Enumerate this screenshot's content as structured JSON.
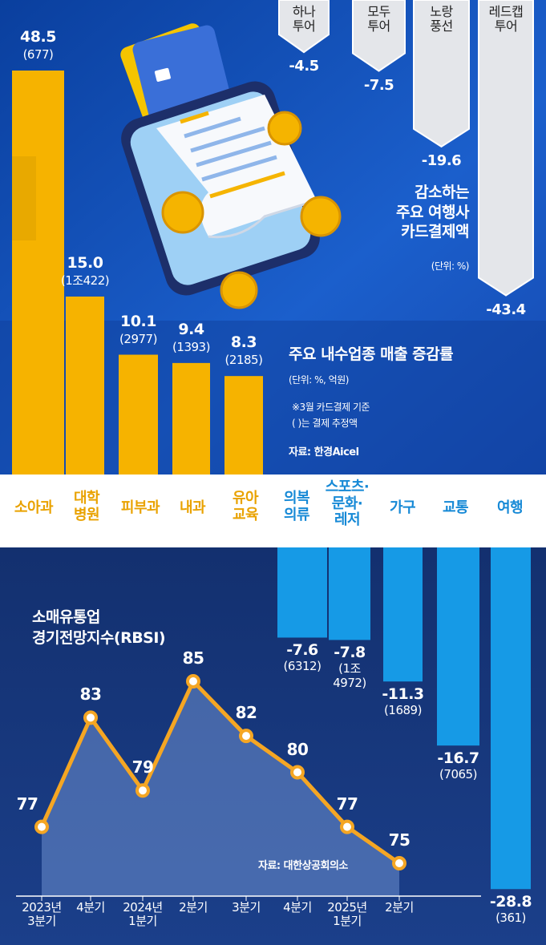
{
  "chart_data": [
    {
      "type": "arrow-bar",
      "title": "감소하는\n주요 여행사\n카드결제액",
      "unit": "(단위: %)",
      "categories": [
        "하나\n투어",
        "모두\n투어",
        "노랑\n풍선",
        "레드캡\n투어"
      ],
      "values": [
        -4.5,
        -7.5,
        -19.6,
        -43.4
      ],
      "color": "#e4e6ea"
    },
    {
      "type": "bar",
      "title": "주요 내수업종 매출 증감률",
      "unit": "(단위: %, 억원)",
      "notes": [
        "※3월 카드결제 기준",
        "( )는 결제 추정액"
      ],
      "source": "자료: 한경Aicel",
      "categories": [
        "소아과",
        "대학\n병원",
        "피부과",
        "내과",
        "유아\n교육",
        "의복\n의류",
        "스포츠·\n문화·\n레저",
        "가구",
        "교통",
        "여행"
      ],
      "values": [
        48.5,
        15.0,
        10.1,
        9.4,
        8.3,
        -7.6,
        -7.8,
        -11.3,
        -16.7,
        -28.8
      ],
      "value_labels": [
        "48.5",
        "15.0",
        "10.1",
        "9.4",
        "8.3",
        "-7.6",
        "-7.8",
        "-11.3",
        "-16.7",
        "-28.8"
      ],
      "amount_labels": [
        "(677)",
        "(1조422)",
        "(2977)",
        "(1393)",
        "(2185)",
        "(6312)",
        "(1조\n4972)",
        "(1689)",
        "(7065)",
        "(361)"
      ],
      "positive_color": "#f6b300",
      "negative_color": "#169ae6",
      "positive_label_color": "#e9a200",
      "negative_label_color": "#1689d6"
    },
    {
      "type": "line",
      "title": "소매유통업\n경기전망지수(RBSI)",
      "source": "자료: 대한상공회의소",
      "categories": [
        "2023년\n3분기",
        "4분기",
        "2024년\n1분기",
        "2분기",
        "3분기",
        "4분기",
        "2025년\n1분기",
        "2분기"
      ],
      "values": [
        77,
        83,
        79,
        85,
        82,
        80,
        77,
        75
      ],
      "color": "#f5a623",
      "area_color": "#6e8fcf"
    }
  ]
}
